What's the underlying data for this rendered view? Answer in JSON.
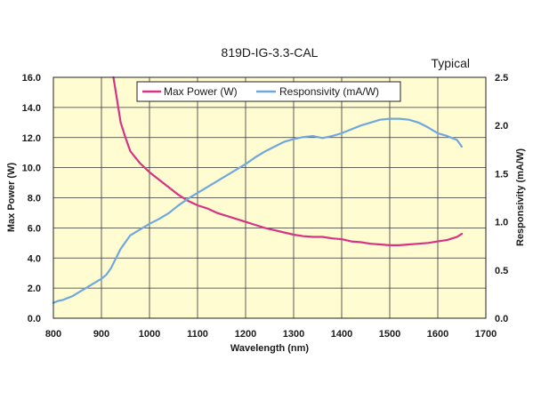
{
  "chart_data": {
    "type": "line",
    "title": "819D-IG-3.3-CAL",
    "annotation": "Typical",
    "xlabel": "Wavelength (nm)",
    "ylabel_left": "Max Power (W)",
    "ylabel_right": "Responsivity (mA/W)",
    "xlim": [
      800,
      1700
    ],
    "ylim_left": [
      0,
      16
    ],
    "ylim_right": [
      0,
      2.5
    ],
    "x_ticks": [
      "800",
      "900",
      "1000",
      "1100",
      "1200",
      "1300",
      "1400",
      "1500",
      "1600",
      "1700"
    ],
    "y_left_ticks": [
      "0.0",
      "2.0",
      "4.0",
      "6.0",
      "8.0",
      "10.0",
      "12.0",
      "14.0",
      "16.0"
    ],
    "y_right_ticks": [
      "0.0",
      "0.5",
      "1.0",
      "1.5",
      "2.0",
      "2.5"
    ],
    "grid": true,
    "legend_position": "top-center",
    "series": [
      {
        "name": "Max Power (W)",
        "axis": "left",
        "color": "#d63384",
        "x": [
          925,
          932,
          940,
          950,
          960,
          970,
          980,
          990,
          1000,
          1020,
          1040,
          1060,
          1080,
          1100,
          1120,
          1140,
          1160,
          1180,
          1200,
          1220,
          1240,
          1260,
          1280,
          1300,
          1320,
          1340,
          1360,
          1380,
          1400,
          1420,
          1440,
          1460,
          1480,
          1500,
          1520,
          1540,
          1560,
          1580,
          1600,
          1620,
          1640,
          1650
        ],
        "values": [
          16.0,
          14.6,
          13.0,
          12.0,
          11.1,
          10.7,
          10.3,
          10.0,
          9.7,
          9.2,
          8.7,
          8.2,
          7.8,
          7.5,
          7.3,
          7.0,
          6.8,
          6.6,
          6.4,
          6.2,
          6.0,
          5.85,
          5.7,
          5.55,
          5.45,
          5.4,
          5.4,
          5.3,
          5.25,
          5.1,
          5.05,
          4.95,
          4.9,
          4.85,
          4.85,
          4.9,
          4.95,
          5.0,
          5.1,
          5.2,
          5.4,
          5.6
        ]
      },
      {
        "name": "Responsivity (mA/W)",
        "axis": "right",
        "color": "#6fa8dc",
        "x": [
          800,
          810,
          820,
          830,
          840,
          850,
          860,
          870,
          880,
          890,
          900,
          910,
          920,
          930,
          940,
          950,
          960,
          980,
          1000,
          1020,
          1040,
          1060,
          1080,
          1100,
          1120,
          1140,
          1160,
          1180,
          1200,
          1220,
          1240,
          1260,
          1280,
          1300,
          1320,
          1340,
          1350,
          1360,
          1380,
          1400,
          1420,
          1440,
          1460,
          1480,
          1500,
          1520,
          1540,
          1560,
          1580,
          1600,
          1620,
          1640,
          1650
        ],
        "values": [
          0.16,
          0.18,
          0.19,
          0.21,
          0.23,
          0.26,
          0.29,
          0.32,
          0.35,
          0.38,
          0.41,
          0.45,
          0.52,
          0.62,
          0.72,
          0.79,
          0.86,
          0.92,
          0.98,
          1.03,
          1.09,
          1.17,
          1.24,
          1.3,
          1.36,
          1.42,
          1.48,
          1.54,
          1.6,
          1.67,
          1.73,
          1.78,
          1.83,
          1.86,
          1.88,
          1.89,
          1.88,
          1.87,
          1.89,
          1.92,
          1.96,
          2.0,
          2.03,
          2.06,
          2.07,
          2.07,
          2.06,
          2.03,
          1.98,
          1.92,
          1.89,
          1.85,
          1.78
        ]
      }
    ]
  }
}
